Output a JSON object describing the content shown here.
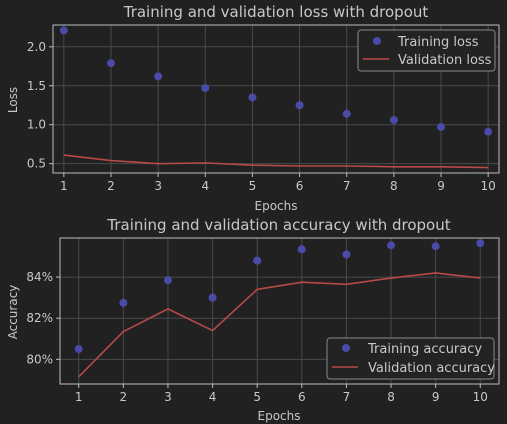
{
  "colors": {
    "background": "#212121",
    "grid": "#4a4a4a",
    "spine": "#bdbdbd",
    "text": "#c8c8c8",
    "training_marker": "#4a4aa8",
    "validation_line": "#b64a48",
    "legend_bg": "#232323",
    "legend_border": "#8a8a8a"
  },
  "chart_data": [
    {
      "type": "line",
      "title": "Training and validation loss with dropout",
      "xlabel": "Epochs",
      "ylabel": "Loss",
      "x": [
        1,
        2,
        3,
        4,
        5,
        6,
        7,
        8,
        9,
        10
      ],
      "xticks": [
        "1",
        "2",
        "3",
        "4",
        "5",
        "6",
        "7",
        "8",
        "9",
        "10"
      ],
      "xlim": [
        0.77,
        10.23
      ],
      "ylim": [
        0.38,
        2.28
      ],
      "yticks": [
        0.5,
        1.0,
        1.5,
        2.0
      ],
      "ytick_labels": [
        "0.5",
        "1.0",
        "1.5",
        "2.0"
      ],
      "grid": true,
      "legend_position": "top-right",
      "series": [
        {
          "name": "Training loss",
          "style": "markers",
          "values": [
            2.21,
            1.79,
            1.62,
            1.47,
            1.35,
            1.25,
            1.14,
            1.06,
            0.97,
            0.91
          ]
        },
        {
          "name": "Validation loss",
          "style": "line",
          "values": [
            0.61,
            0.54,
            0.5,
            0.51,
            0.48,
            0.47,
            0.47,
            0.46,
            0.46,
            0.45
          ]
        }
      ]
    },
    {
      "type": "line",
      "title": "Training and validation accuracy with dropout",
      "xlabel": "Epochs",
      "ylabel": "Accuracy",
      "x": [
        1,
        2,
        3,
        4,
        5,
        6,
        7,
        8,
        9,
        10
      ],
      "xticks": [
        "1",
        "2",
        "3",
        "4",
        "5",
        "6",
        "7",
        "8",
        "9",
        "10"
      ],
      "xlim": [
        0.58,
        10.42
      ],
      "ylim": [
        78.8,
        85.9
      ],
      "yticks": [
        80,
        82,
        84
      ],
      "ytick_labels": [
        "80%",
        "82%",
        "84%"
      ],
      "grid": true,
      "legend_position": "bottom-right",
      "series": [
        {
          "name": "Training accuracy",
          "style": "markers",
          "values": [
            80.5,
            82.75,
            83.85,
            83.0,
            84.8,
            85.35,
            85.1,
            85.55,
            85.5,
            85.65
          ]
        },
        {
          "name": "Validation accuracy",
          "style": "line",
          "values": [
            79.15,
            81.35,
            82.45,
            81.4,
            83.4,
            83.75,
            83.65,
            83.95,
            84.2,
            83.95
          ]
        }
      ]
    }
  ]
}
